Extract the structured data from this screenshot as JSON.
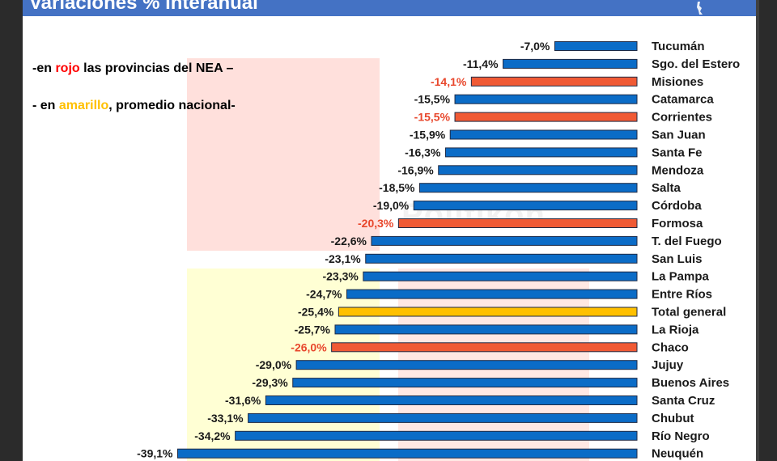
{
  "title": "Variaciones % interanual",
  "notes": {
    "nea_prefix": "-en ",
    "nea_word": "rojo",
    "nea_suffix": " las provincias del NEA –",
    "avg_prefix": "- en ",
    "avg_word": "amarillo",
    "avg_suffix": ", promedio nacional-"
  },
  "watermark": "Politikon",
  "colors": {
    "default": "#0b6cc7",
    "nea": "#f05a35",
    "average": "#ffc000",
    "outline": "#1f2a44",
    "nea_label": "#e8472c",
    "header": "#4472c4"
  },
  "chart_data": {
    "type": "bar",
    "orientation": "horizontal",
    "title": "Variaciones % interanual",
    "xlim": [
      -40,
      0
    ],
    "grid": false,
    "categories": [
      "Tucumán",
      "Sgo. del Estero",
      "Misiones",
      "Catamarca",
      "Corrientes",
      "San Juan",
      "Santa Fe",
      "Mendoza",
      "Salta",
      "Córdoba",
      "Formosa",
      "T. del Fuego",
      "San Luis",
      "La Pampa",
      "Entre Ríos",
      "Total general",
      "La Rioja",
      "Chaco",
      "Jujuy",
      "Buenos Aires",
      "Santa Cruz",
      "Chubut",
      "Río Negro",
      "Neuquén"
    ],
    "values": [
      -7.0,
      -11.4,
      -14.1,
      -15.5,
      -15.5,
      -15.9,
      -16.3,
      -16.9,
      -18.5,
      -19.0,
      -20.3,
      -22.6,
      -23.1,
      -23.3,
      -24.7,
      -25.4,
      -25.7,
      -26.0,
      -29.0,
      -29.3,
      -31.6,
      -33.1,
      -34.2,
      -39.1
    ],
    "value_labels": [
      "-7,0%",
      "-11,4%",
      "-14,1%",
      "-15,5%",
      "-15,5%",
      "-15,9%",
      "-16,3%",
      "-16,9%",
      "-18,5%",
      "-19,0%",
      "-20,3%",
      "-22,6%",
      "-23,1%",
      "-23,3%",
      "-24,7%",
      "-25,4%",
      "-25,7%",
      "-26,0%",
      "-29,0%",
      "-29,3%",
      "-31,6%",
      "-33,1%",
      "-34,2%",
      "-39,1%"
    ],
    "groups": [
      "default",
      "default",
      "nea",
      "default",
      "nea",
      "default",
      "default",
      "default",
      "default",
      "default",
      "nea",
      "default",
      "default",
      "default",
      "default",
      "average",
      "default",
      "nea",
      "default",
      "default",
      "default",
      "default",
      "default",
      "default"
    ]
  }
}
